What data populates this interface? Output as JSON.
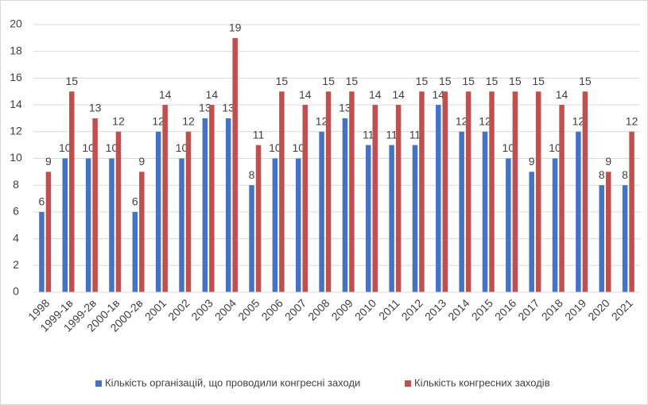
{
  "chart_data": {
    "type": "bar",
    "categories": [
      "1998",
      "1999-1в",
      "1999-2в",
      "2000-1в",
      "2000-2в",
      "2001",
      "2002",
      "2003",
      "2004",
      "2005",
      "2006",
      "2007",
      "2008",
      "2009",
      "2010",
      "2011",
      "2012",
      "2013",
      "2014",
      "2015",
      "2016",
      "2017",
      "2018",
      "2019",
      "2020",
      "2021"
    ],
    "series": [
      {
        "name": "Кількість організацій, що проводили конгресні заходи",
        "color": "#4472c4",
        "values": [
          6,
          10,
          10,
          10,
          6,
          12,
          10,
          13,
          13,
          8,
          10,
          10,
          12,
          13,
          11,
          11,
          11,
          14,
          12,
          12,
          10,
          9,
          10,
          12,
          8,
          8
        ]
      },
      {
        "name": "Кількість конгресних заходів",
        "color": "#c0504d",
        "values": [
          9,
          15,
          13,
          12,
          9,
          14,
          12,
          14,
          19,
          11,
          15,
          14,
          15,
          15,
          14,
          14,
          15,
          15,
          15,
          15,
          15,
          15,
          14,
          15,
          9,
          12
        ]
      }
    ],
    "ylim": [
      0,
      20
    ],
    "yticks": [
      0,
      2,
      4,
      6,
      8,
      10,
      12,
      14,
      16,
      18,
      20
    ],
    "grid": true,
    "legend": "bottom"
  }
}
